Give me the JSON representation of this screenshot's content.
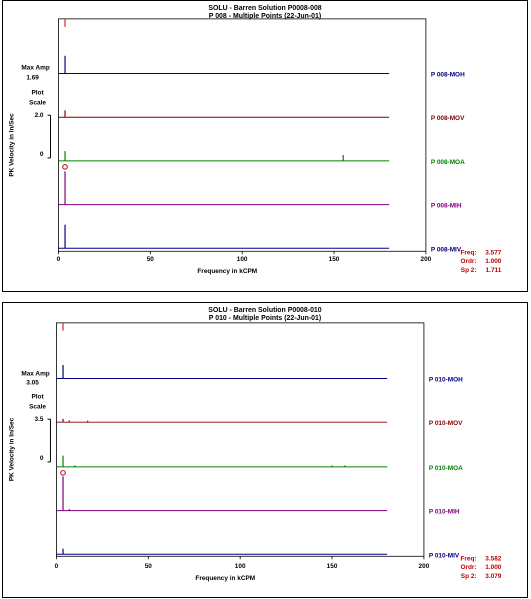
{
  "panels": [
    {
      "title": "SOLU - Barren Solution P0008-008",
      "subtitle": "P 008     - Multiple Points   (22-Jun-01)",
      "max_amp_label": "Max Amp",
      "max_amp_value": "1.69",
      "plot_scale_label_1": "Plot",
      "plot_scale_label_2": "Scale",
      "plot_scale_value": "2.0",
      "zero_label": "0",
      "ylabel": "PK Velocity in In/Sec",
      "xlabel": "Frequency in kCPM",
      "x_ticks": [
        "0",
        "50",
        "100",
        "150",
        "200"
      ],
      "cursor": {
        "freq_label": "Freq:",
        "freq_value": "3.577",
        "ordr_label": "Ordr:",
        "ordr_value": "1.000",
        "sp2_label": "Sp 2:",
        "sp2_value": "1.711"
      }
    },
    {
      "title": "SOLU - Barren Solution P0008-010",
      "subtitle": "P 010     - Multiple Points   (22-Jun-01)",
      "max_amp_label": "Max Amp",
      "max_amp_value": "3.05",
      "plot_scale_label_1": "Plot",
      "plot_scale_label_2": "Scale",
      "plot_scale_value": "3.5",
      "zero_label": "0",
      "ylabel": "PK Velocity in In/Sec",
      "xlabel": "Frequency in kCPM",
      "x_ticks": [
        "0",
        "50",
        "100",
        "150",
        "200"
      ],
      "cursor": {
        "freq_label": "Freq:",
        "freq_value": "3.582",
        "ordr_label": "Ordr:",
        "ordr_value": "1.000",
        "sp2_label": "Sp 2:",
        "sp2_value": "3.079"
      }
    }
  ],
  "chart_data": [
    {
      "type": "line",
      "title": "SOLU - Barren Solution P0008-008",
      "xlabel": "Frequency in kCPM",
      "ylabel": "PK Velocity in In/Sec",
      "xlim": [
        0,
        200
      ],
      "plot_scale": 2.0,
      "max_amp": 1.69,
      "cursor_x": 3.577,
      "series": [
        {
          "name": "P 008-MOH",
          "color": "#000080",
          "peaks": [
            [
              3.6,
              0.9
            ]
          ]
        },
        {
          "name": "P 008-MOV",
          "color": "#800000",
          "peaks": [
            [
              3.6,
              0.35
            ]
          ]
        },
        {
          "name": "P 008-MOA",
          "color": "#008000",
          "peaks": [
            [
              3.6,
              0.5
            ],
            [
              155,
              0.3
            ]
          ]
        },
        {
          "name": "P 008-MIH",
          "color": "#800080",
          "peaks": [
            [
              3.6,
              1.69
            ]
          ]
        },
        {
          "name": "P 008-MIV",
          "color": "#000080",
          "peaks": [
            [
              3.6,
              1.2
            ]
          ]
        }
      ]
    },
    {
      "type": "line",
      "title": "SOLU - Barren Solution P0008-010",
      "xlabel": "Frequency in kCPM",
      "ylabel": "PK Velocity in In/Sec",
      "xlim": [
        0,
        200
      ],
      "plot_scale": 3.5,
      "max_amp": 3.05,
      "cursor_x": 3.582,
      "series": [
        {
          "name": "P 010-MOH",
          "color": "#000080",
          "peaks": [
            [
              3.6,
              1.2
            ]
          ]
        },
        {
          "name": "P 010-MOV",
          "color": "#800000",
          "peaks": [
            [
              3.6,
              0.3
            ],
            [
              7,
              0.15
            ],
            [
              17,
              0.1
            ]
          ]
        },
        {
          "name": "P 010-MOA",
          "color": "#008000",
          "peaks": [
            [
              3.6,
              1.0
            ],
            [
              10,
              0.1
            ],
            [
              150,
              0.1
            ],
            [
              157,
              0.08
            ]
          ]
        },
        {
          "name": "P 010-MIH",
          "color": "#800080",
          "peaks": [
            [
              3.6,
              3.05
            ],
            [
              7,
              0.1
            ]
          ]
        },
        {
          "name": "P 010-MIV",
          "color": "#000080",
          "peaks": [
            [
              3.6,
              0.5
            ]
          ]
        }
      ]
    }
  ]
}
